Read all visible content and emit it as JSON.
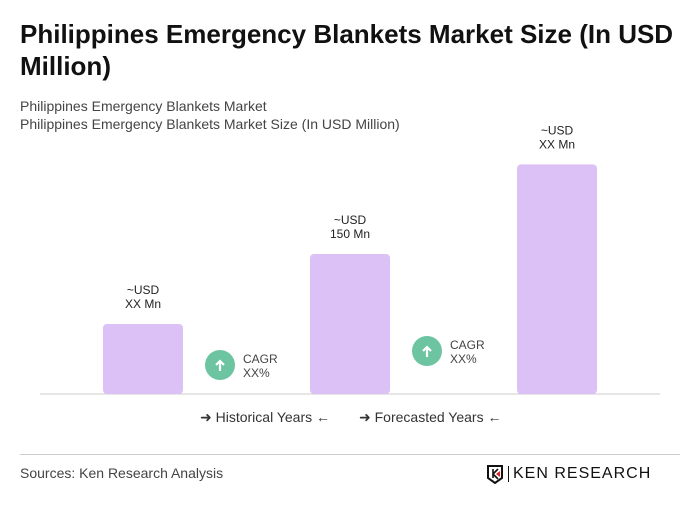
{
  "title": "Philippines Emergency Blankets Market Size (In USD Million)",
  "subtitle1": "Philippines Emergency Blankets Market",
  "subtitle2": "Philippines Emergency Blankets Market Size (In USD Million)",
  "chart_data": {
    "type": "bar",
    "categories": [
      "",
      "",
      ""
    ],
    "values": [
      75,
      150,
      246
    ],
    "data_labels": [
      [
        "~USD",
        "XX Mn"
      ],
      [
        "~USD",
        "150 Mn"
      ],
      [
        "~USD",
        "XX Mn"
      ]
    ],
    "cagr": [
      {
        "label": "CAGR",
        "value": "XX%"
      },
      {
        "label": "CAGR",
        "value": "XX%"
      }
    ],
    "bar_color": "#dcc1f7",
    "cagr_color": "#6cc5a0",
    "legend": [
      "Historical Years",
      "Forecasted Years"
    ],
    "grid": false
  },
  "sources": "Sources: Ken Research Analysis",
  "logo_text": "KEN RESEARCH"
}
